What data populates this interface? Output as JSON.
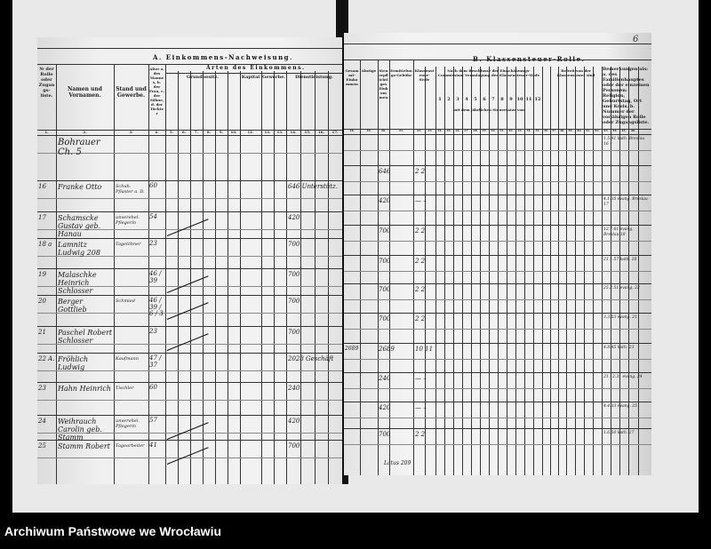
{
  "archive_label": "Archiwum Państwowe we Wrocławiu",
  "page_number": "6",
  "left_page": {
    "title": "A. Einkommens-Nachweisung.",
    "subtitle": "Arten des Einkommens.",
    "groups": [
      "Grundbesitz.",
      "Kapital",
      "Gewerbe.",
      "Dienstleistung."
    ],
    "headers": [
      "№ der Rolle oder Zugangs-liste.",
      "Namen und Vornamen.",
      "Stand und Gewerbe.",
      "Alter a. des Mannes, b. der Frau, c. der Söhne, d. der Töchter"
    ],
    "column_numbers": [
      "1.",
      "2.",
      "3.",
      "4.",
      "5.",
      "6.",
      "7.",
      "8.",
      "9.",
      "10.",
      "11.",
      "12.",
      "13.",
      "14.",
      "15.",
      "16.",
      "17."
    ],
    "entries": [
      {
        "no": "",
        "name": "Bohrauer Ch. 5",
        "stand": "",
        "age": "",
        "income": ""
      },
      {
        "no": "16",
        "name": "Franke Otto",
        "stand": "Schuh. Pflaster a. D.",
        "age": "60",
        "income": "646 Unterstütz."
      },
      {
        "no": "17",
        "name": "Schamscke Gustav geb. Hanau",
        "stand": "unverehel. Pflegerin",
        "age": "54",
        "income": "420"
      },
      {
        "no": "18 a",
        "name": "Lamnitz Ludwig 208",
        "stand": "Tagelöhner",
        "age": "23",
        "income": "700"
      },
      {
        "no": "19",
        "name": "Malaschke Heinrich Schlosser",
        "stand": "",
        "age": "46 / 39",
        "income": "700"
      },
      {
        "no": "20",
        "name": "Berger Gottlieb",
        "stand": "Schmied",
        "age": "46 / 39 / 6 / 3",
        "income": "700"
      },
      {
        "no": "21",
        "name": "Paschel Robert Schlosser",
        "stand": "",
        "age": "23",
        "income": "700"
      },
      {
        "no": "22 A.",
        "name": "Fröhlich Ludwig",
        "stand": "Kaufmann",
        "age": "47 / 37",
        "income": "2028 Geschäft"
      },
      {
        "no": "23",
        "name": "Hahn Heinrich",
        "stand": "Tischler",
        "age": "60",
        "income": "240"
      },
      {
        "no": "24",
        "name": "Weihrauch Carolin geb. Stamm",
        "stand": "unverehel. Pflegerin",
        "age": "57",
        "income": "420"
      },
      {
        "no": "25",
        "name": "Stamm Robert",
        "stand": "Tagearbeiter",
        "age": "41",
        "income": "700"
      }
    ]
  },
  "right_page": {
    "title": "B. Klassensteuer-Rolle.",
    "headers": [
      "Gesammt-Einkommen",
      "Abzüge",
      "Steuerpflichtiges Einkommen",
      "Ermittelungs-Gebühr",
      "Klassensteuer-Stufe",
      "Nach dem Beschlusse der Einschätzungs-Commission: Veranlagung der Klassensteuer-Stufe",
      "mit dem jährlichen Steuersatze von",
      "Befreit von der Klassensteuer sind",
      "Bemerkungen als: a. des Familienhauptes oder der einzelnen Personen: Religion, Geburtstag, Ort und Kreis. b. Nummer der vorjährigen Rolle oder Zugangsliste."
    ],
    "stage_numbers": [
      "1",
      "2",
      "3",
      "4",
      "5",
      "6",
      "7",
      "8",
      "9",
      "10",
      "11",
      "12"
    ],
    "column_numbers": [
      "18.",
      "19.",
      "20.",
      "21.",
      "22.",
      "23.",
      "24.",
      "25.",
      "26.",
      "27.",
      "28.",
      "29.",
      "30.",
      "31.",
      "32.",
      "33.",
      "34.",
      "35.",
      "36.",
      "37.",
      "38.",
      "39.",
      "40.",
      "41.",
      "42.",
      "43.",
      "44.",
      "45.",
      "46."
    ],
    "entries": [
      {
        "total": "",
        "taxable": "",
        "stage": "",
        "remark": "1.5.41 kath. Breslau 16"
      },
      {
        "total": "",
        "taxable": "646",
        "stage": "2 2",
        "remark": ""
      },
      {
        "total": "",
        "taxable": "420",
        "stage": "— –",
        "remark": "4.1.35 evang. Breslau 17"
      },
      {
        "total": "",
        "taxable": "700",
        "stage": "2 2",
        "remark": "12.7.61 evang. Breslau 18"
      },
      {
        "total": "",
        "taxable": "700",
        "stage": "2 2",
        "remark": "21.1.57 kath. 20"
      },
      {
        "total": "",
        "taxable": "700",
        "stage": "2 2",
        "remark": "25.2.51 evang. 22"
      },
      {
        "total": "",
        "taxable": "700",
        "stage": "2 2",
        "remark": "3.3.53 evang. 21"
      },
      {
        "total": "2689",
        "taxable": "2689",
        "stage": "10 11",
        "remark": "4.8.45 kath. 23"
      },
      {
        "total": "",
        "taxable": "240",
        "stage": "— –",
        "remark": "21.12.31 evang. 24"
      },
      {
        "total": "",
        "taxable": "420",
        "stage": "— –",
        "remark": "4.4.33 evang. 25"
      },
      {
        "total": "",
        "taxable": "700",
        "stage": "2 2",
        "remark": "1.6.50 kath. 27"
      }
    ],
    "summary_label": "Latus 209"
  }
}
